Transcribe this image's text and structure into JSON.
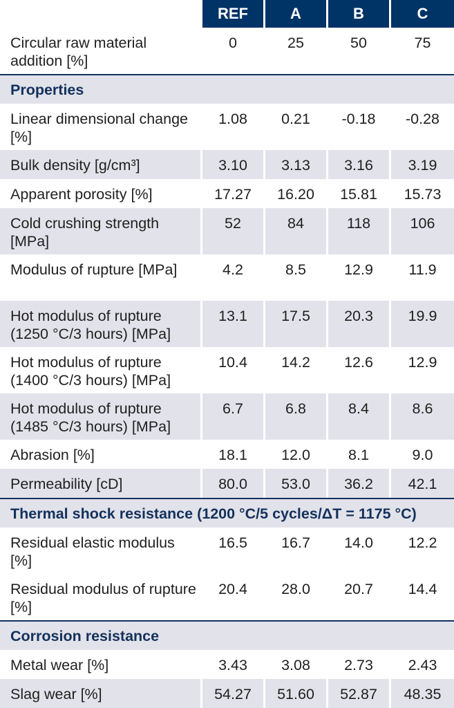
{
  "header": [
    "",
    "REF",
    "A",
    "B",
    "C"
  ],
  "top_row": {
    "label": "Circular raw material addition [%]",
    "values": [
      "0",
      "25",
      "50",
      "75"
    ]
  },
  "sections": [
    {
      "title": "Properties",
      "rows": [
        {
          "label": "Linear dimensional change [%]",
          "values": [
            "1.08",
            "0.21",
            "-0.18",
            "-0.28"
          ]
        },
        {
          "label": "Bulk density [g/cm³]",
          "values": [
            "3.10",
            "3.13",
            "3.16",
            "3.19"
          ]
        },
        {
          "label": "Apparent porosity [%]",
          "values": [
            "17.27",
            "16.20",
            "15.81",
            "15.73"
          ]
        },
        {
          "label": "Cold crushing strength [MPa]",
          "values": [
            "52",
            "84",
            "118",
            "106"
          ]
        },
        {
          "label": "Modulus of rupture [MPa]",
          "values": [
            "4.2",
            "8.5",
            "12.9",
            "11.9"
          ]
        },
        {
          "label": "Hot modulus of rupture (1250 °C/3 hours) [MPa]",
          "values": [
            "13.1",
            "17.5",
            "20.3",
            "19.9"
          ]
        },
        {
          "label": "Hot modulus of rupture (1400 °C/3 hours) [MPa]",
          "values": [
            "10.4",
            "14.2",
            "12.6",
            "12.9"
          ]
        },
        {
          "label": "Hot modulus of rupture (1485 °C/3 hours) [MPa]",
          "values": [
            "6.7",
            "6.8",
            "8.4",
            "8.6"
          ]
        },
        {
          "label": "Abrasion [%]",
          "values": [
            "18.1",
            "12.0",
            "8.1",
            "9.0"
          ]
        },
        {
          "label": "Permeability [cD]",
          "values": [
            "80.0",
            "53.0",
            "36.2",
            "42.1"
          ]
        }
      ]
    },
    {
      "title": "Thermal shock resistance (1200 °C/5 cycles/ΔT = 1175 °C)",
      "rows": [
        {
          "label": "Residual elastic modulus [%]",
          "values": [
            "16.5",
            "16.7",
            "14.0",
            "12.2"
          ]
        },
        {
          "label": "Residual modulus of rupture [%]",
          "values": [
            "20.4",
            "28.0",
            "20.7",
            "14.4"
          ]
        }
      ]
    },
    {
      "title": "Corrosion resistance",
      "rows": [
        {
          "label": "Metal wear [%]",
          "values": [
            "3.43",
            "3.08",
            "2.73",
            "2.43"
          ]
        },
        {
          "label": "Slag wear [%]",
          "values": [
            "54.27",
            "51.60",
            "52.87",
            "48.35"
          ]
        }
      ]
    }
  ]
}
